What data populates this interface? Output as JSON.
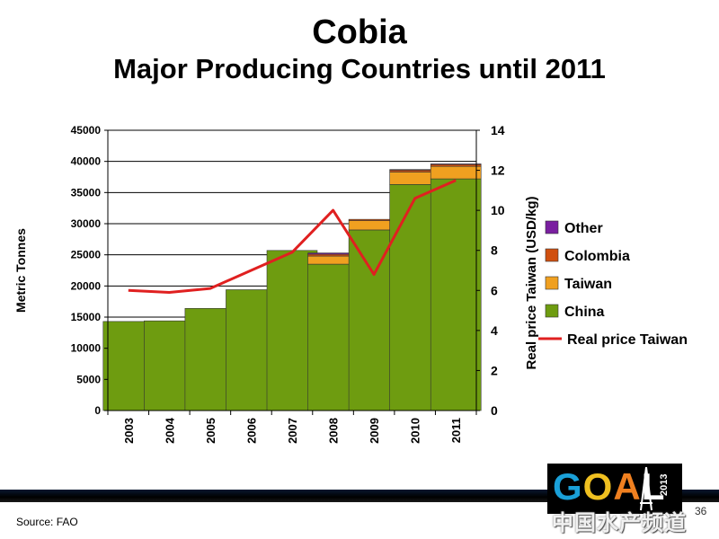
{
  "slide": {
    "title": "Cobia",
    "subtitle": "Major Producing Countries until 2011",
    "source": "Source: FAO",
    "page_number": "36",
    "logo_text": "GOAL",
    "logo_year": "2013",
    "watermark_text": "中国水产频道"
  },
  "chart_data": {
    "type": "bar",
    "stacked": true,
    "title": "",
    "categories": [
      "2003",
      "2004",
      "2005",
      "2006",
      "2007",
      "2008",
      "2009",
      "2010",
      "2011"
    ],
    "ylabel": "Metric Tonnes",
    "ylim": [
      0,
      45000
    ],
    "yticks": [
      0,
      5000,
      10000,
      15000,
      20000,
      25000,
      30000,
      35000,
      40000,
      45000
    ],
    "y2label": "Real price Taiwan (USD/kg)",
    "y2lim": [
      0,
      14
    ],
    "y2ticks": [
      0,
      2,
      4,
      6,
      8,
      10,
      12,
      14
    ],
    "grid": true,
    "legend_position": "right",
    "series": [
      {
        "name": "China",
        "kind": "bar",
        "color": "#6e9c10",
        "values": [
          14300,
          14400,
          16400,
          19400,
          25700,
          23500,
          29000,
          36300,
          37200
        ]
      },
      {
        "name": "Taiwan",
        "kind": "bar",
        "color": "#f0a020",
        "values": [
          0,
          0,
          0,
          0,
          0,
          1300,
          1500,
          2000,
          2000
        ]
      },
      {
        "name": "Colombia",
        "kind": "bar",
        "color": "#d05010",
        "values": [
          0,
          0,
          0,
          0,
          0,
          300,
          200,
          300,
          300
        ]
      },
      {
        "name": "Other",
        "kind": "bar",
        "color": "#7a1fa0",
        "values": [
          0,
          0,
          0,
          0,
          0,
          200,
          0,
          100,
          100
        ]
      },
      {
        "name": "Real price Taiwan",
        "kind": "line",
        "axis": "right",
        "color": "#e02020",
        "values": [
          6.0,
          5.9,
          6.1,
          7.0,
          7.9,
          10.0,
          6.8,
          10.6,
          11.5
        ]
      }
    ]
  }
}
